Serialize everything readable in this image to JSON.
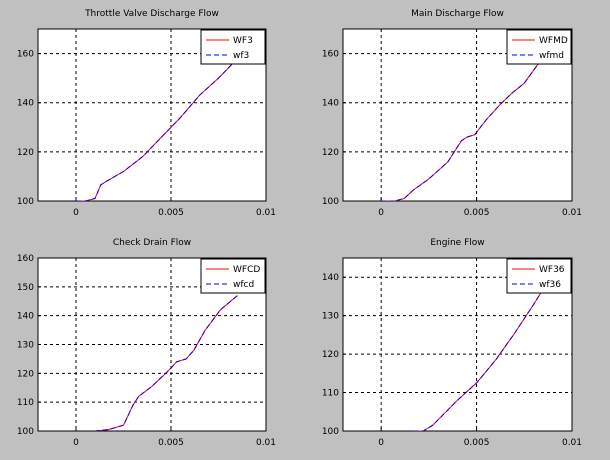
{
  "chart_data": [
    {
      "type": "line",
      "title": "Throttle Valve Discharge Flow",
      "xlim": [
        -0.002,
        0.01
      ],
      "ylim": [
        100,
        170
      ],
      "xticks": [
        "0",
        "0.005",
        "0.01"
      ],
      "yticks": [
        "100",
        "120",
        "140",
        "160"
      ],
      "grid": "dashed",
      "legend_position": "top-right",
      "series": [
        {
          "name": "WF3",
          "color": "#ff0000",
          "line_style": "solid",
          "x": [
            0,
            0.0005,
            0.001,
            0.0013,
            0.0016,
            0.0025,
            0.0035,
            0.0045,
            0.0055,
            0.0065,
            0.0075,
            0.0085
          ],
          "y": [
            100,
            100,
            101,
            106.5,
            108,
            112,
            118,
            126,
            134,
            143,
            150,
            158
          ]
        },
        {
          "name": "wf3",
          "color": "#0000ff",
          "line_style": "dashed",
          "x": [
            0,
            0.0005,
            0.001,
            0.0013,
            0.0016,
            0.0025,
            0.0035,
            0.0045,
            0.0055,
            0.0065,
            0.0075,
            0.0085
          ],
          "y": [
            100,
            100,
            101,
            106.5,
            108,
            112,
            118,
            126,
            134,
            143,
            150,
            158
          ]
        }
      ]
    },
    {
      "type": "line",
      "title": "Main Discharge Flow",
      "xlim": [
        -0.002,
        0.01
      ],
      "ylim": [
        100,
        170
      ],
      "xticks": [
        "0",
        "0.005",
        "0.01"
      ],
      "yticks": [
        "100",
        "120",
        "140",
        "160"
      ],
      "grid": "dashed",
      "legend_position": "top-right",
      "series": [
        {
          "name": "WFMD",
          "color": "#ff0000",
          "line_style": "solid",
          "x": [
            0,
            0.0007,
            0.0012,
            0.0017,
            0.0025,
            0.0035,
            0.0042,
            0.0045,
            0.0049,
            0.0055,
            0.0062,
            0.0068,
            0.0075,
            0.0082,
            0.0085
          ],
          "y": [
            100,
            100,
            101,
            104.5,
            109,
            116,
            124.5,
            126,
            127,
            133,
            139,
            143.5,
            148,
            155.5,
            158
          ]
        },
        {
          "name": "wfmd",
          "color": "#0000ff",
          "line_style": "dashed",
          "x": [
            0,
            0.0007,
            0.0012,
            0.0017,
            0.0025,
            0.0035,
            0.0042,
            0.0045,
            0.0049,
            0.0055,
            0.0062,
            0.0068,
            0.0075,
            0.0082,
            0.0085
          ],
          "y": [
            100,
            100,
            101,
            104.5,
            109,
            116,
            124.5,
            126,
            127,
            133,
            139,
            143.5,
            148,
            155.5,
            158
          ]
        }
      ]
    },
    {
      "type": "line",
      "title": "Check Drain Flow",
      "xlim": [
        -0.002,
        0.01
      ],
      "ylim": [
        100,
        160
      ],
      "xticks": [
        "0",
        "0.005",
        "0.01"
      ],
      "yticks": [
        "100",
        "110",
        "120",
        "130",
        "140",
        "150",
        "160"
      ],
      "grid": "dashed",
      "legend_position": "top-right",
      "series": [
        {
          "name": "WFCD",
          "color": "#ff0000",
          "line_style": "solid",
          "x": [
            0.001,
            0.0017,
            0.0025,
            0.003,
            0.0033,
            0.004,
            0.0048,
            0.0053,
            0.0058,
            0.0062,
            0.0068,
            0.0076,
            0.0085
          ],
          "y": [
            100,
            100.5,
            102,
            109,
            112,
            115.5,
            120.5,
            124,
            125,
            128,
            135,
            142,
            147
          ]
        },
        {
          "name": "wfcd",
          "color": "#0000ff",
          "line_style": "dashed",
          "x": [
            0.001,
            0.0017,
            0.0025,
            0.003,
            0.0033,
            0.004,
            0.0048,
            0.0053,
            0.0058,
            0.0062,
            0.0068,
            0.0076,
            0.0085
          ],
          "y": [
            100,
            100.5,
            102,
            109,
            112,
            115.5,
            120.5,
            124,
            125,
            128,
            135,
            142,
            147
          ]
        }
      ]
    },
    {
      "type": "line",
      "title": "Engine Flow",
      "xlim": [
        -0.002,
        0.01
      ],
      "ylim": [
        100,
        145
      ],
      "xticks": [
        "0",
        "0.005",
        "0.01"
      ],
      "yticks": [
        "100",
        "110",
        "120",
        "130",
        "140"
      ],
      "grid": "dashed",
      "legend_position": "top-right",
      "series": [
        {
          "name": "WF36",
          "color": "#ff0000",
          "line_style": "solid",
          "x": [
            0.0017,
            0.0022,
            0.0027,
            0.0033,
            0.004,
            0.005,
            0.006,
            0.007,
            0.008,
            0.0085
          ],
          "y": [
            100,
            100,
            101.5,
            104.5,
            108,
            112.5,
            118.5,
            125.5,
            133,
            137
          ]
        },
        {
          "name": "wf36",
          "color": "#0000ff",
          "line_style": "dashed",
          "x": [
            0.0017,
            0.0022,
            0.0027,
            0.0033,
            0.004,
            0.005,
            0.006,
            0.007,
            0.008,
            0.0085
          ],
          "y": [
            100,
            100,
            101.5,
            104.5,
            108,
            112.5,
            118.5,
            125.5,
            133,
            137
          ]
        }
      ]
    }
  ]
}
